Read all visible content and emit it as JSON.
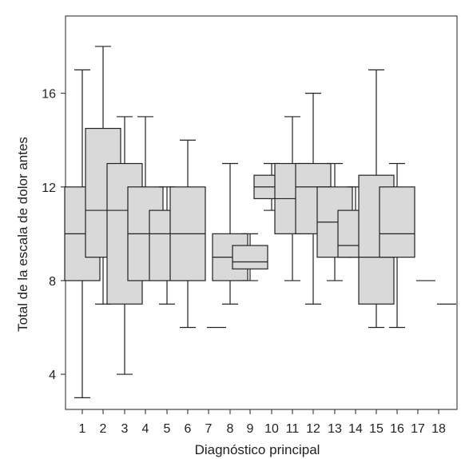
{
  "chart_data": {
    "type": "box",
    "xlabel": "Diagnóstico principal",
    "ylabel": "Total de la escala de dolor antes",
    "ylim": [
      2.5,
      19.3
    ],
    "yticks": [
      4,
      8,
      12,
      16
    ],
    "box_fill": "#d9d9d9",
    "line_color": "#222222",
    "categories": [
      "1",
      "2",
      "3",
      "4",
      "5",
      "6",
      "7",
      "8",
      "9",
      "10",
      "11",
      "12",
      "13",
      "14",
      "15",
      "16",
      "17",
      "18"
    ],
    "boxes": [
      {
        "label": "1",
        "min": 3,
        "q1": 8,
        "median": 10,
        "q3": 12,
        "max": 17
      },
      {
        "label": "2",
        "min": 7,
        "q1": 9,
        "median": 11,
        "q3": 14.5,
        "max": 18
      },
      {
        "label": "3",
        "min": 4,
        "q1": 7,
        "median": 11,
        "q3": 13,
        "max": 15
      },
      {
        "label": "4",
        "min": 8,
        "q1": 8,
        "median": 10,
        "q3": 12,
        "max": 15
      },
      {
        "label": "5",
        "min": 7,
        "q1": 8,
        "median": 10,
        "q3": 11,
        "max": 12
      },
      {
        "label": "6",
        "min": 6,
        "q1": 8,
        "median": 10,
        "q3": 12,
        "max": 14
      },
      {
        "label": "7",
        "min": 6,
        "q1": 6,
        "median": 6,
        "q3": 6,
        "max": 6
      },
      {
        "label": "8",
        "min": 7,
        "q1": 8,
        "median": 9,
        "q3": 10,
        "max": 13
      },
      {
        "label": "9",
        "min": 8,
        "q1": 8.5,
        "median": 8.8,
        "q3": 9.5,
        "max": 10
      },
      {
        "label": "10",
        "min": 11,
        "q1": 11.5,
        "median": 12,
        "q3": 12.5,
        "max": 13
      },
      {
        "label": "11",
        "min": 8,
        "q1": 10,
        "median": 11.5,
        "q3": 13,
        "max": 15
      },
      {
        "label": "12",
        "min": 7,
        "q1": 10,
        "median": 12,
        "q3": 13,
        "max": 16
      },
      {
        "label": "13",
        "min": 8,
        "q1": 9,
        "median": 10.5,
        "q3": 12,
        "max": 13
      },
      {
        "label": "14",
        "min": 9,
        "q1": 9,
        "median": 9.5,
        "q3": 11,
        "max": 12
      },
      {
        "label": "15",
        "min": 6,
        "q1": 7,
        "median": 9,
        "q3": 12.5,
        "max": 17
      },
      {
        "label": "16",
        "min": 6,
        "q1": 9,
        "median": 10,
        "q3": 12,
        "max": 13
      },
      {
        "label": "17",
        "min": 8,
        "q1": 8,
        "median": 8,
        "q3": 8,
        "max": 8
      },
      {
        "label": "18",
        "min": 7,
        "q1": 7,
        "median": 7,
        "q3": 7,
        "max": 7
      }
    ]
  }
}
